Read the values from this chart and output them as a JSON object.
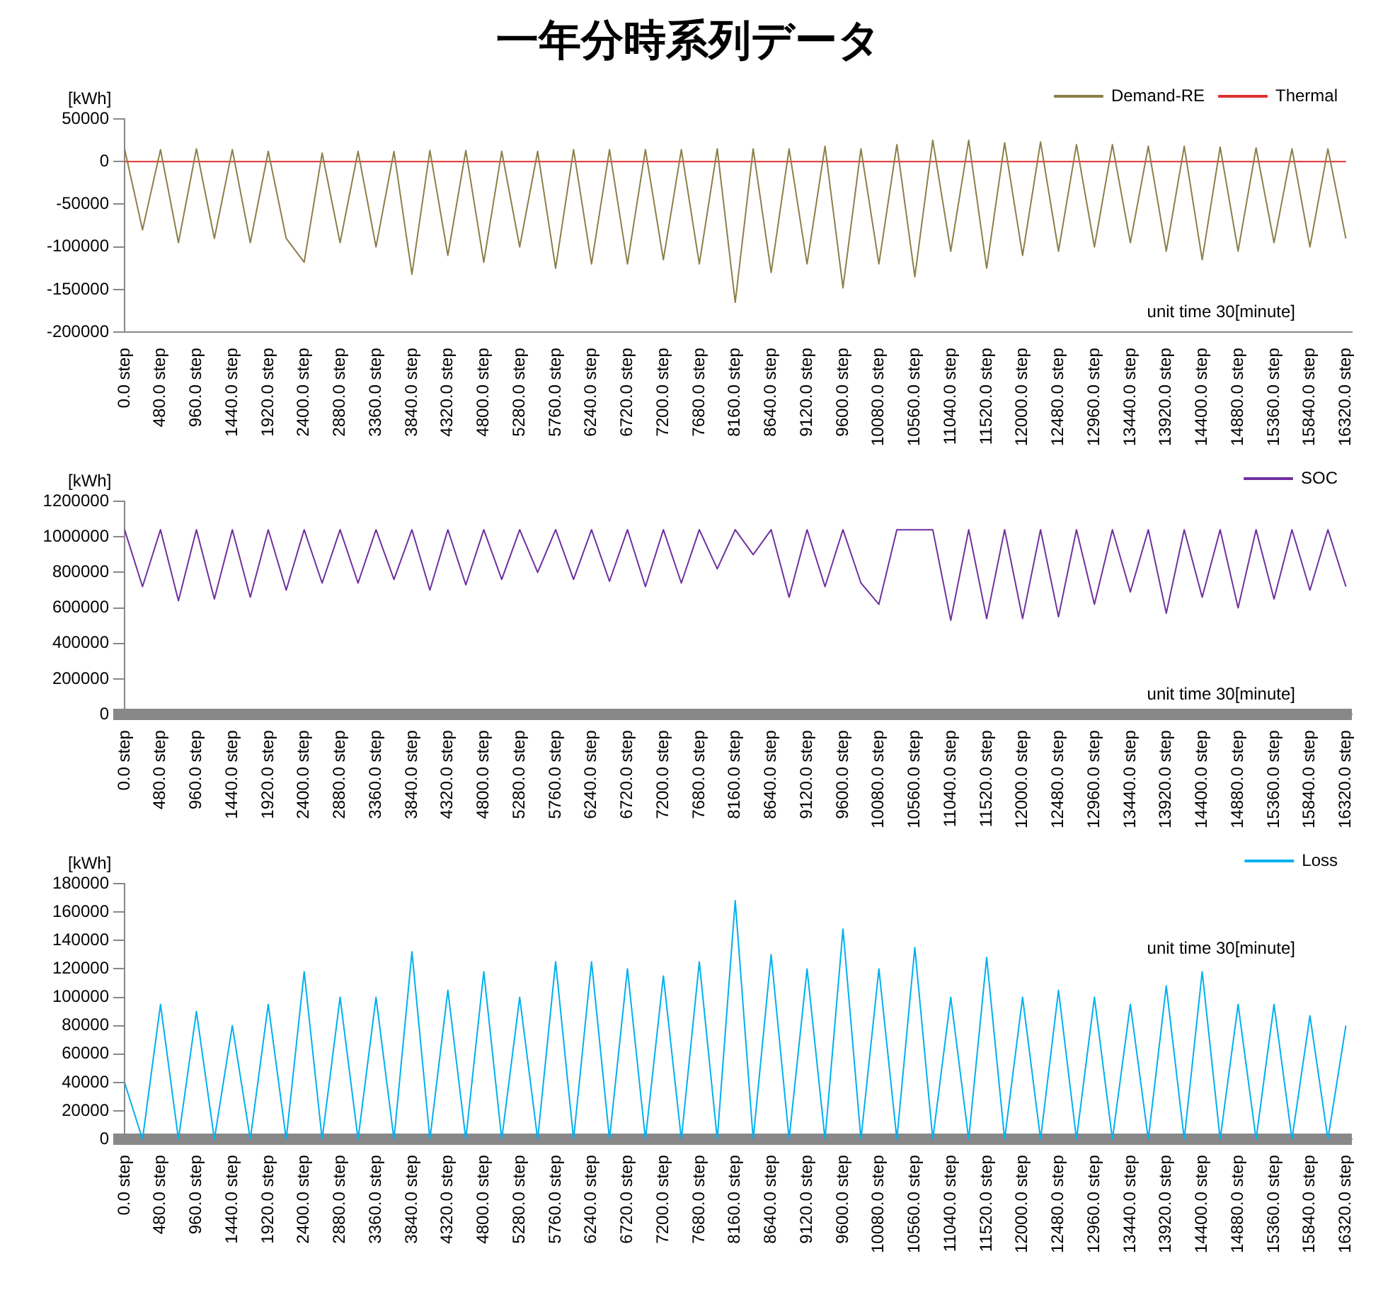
{
  "chart_data": [
    {
      "type": "line",
      "title": "一年分時系列データ",
      "ylabel": "[kWh]",
      "annotations": [
        "unit time 30[minute]"
      ],
      "legend": "top right",
      "grid": false,
      "marker": "none",
      "x": [
        0,
        240,
        480,
        720,
        960,
        1200,
        1440,
        1680,
        1920,
        2160,
        2400,
        2640,
        2880,
        3120,
        3360,
        3600,
        3840,
        4080,
        4320,
        4560,
        4800,
        5040,
        5280,
        5520,
        5760,
        6000,
        6240,
        6480,
        6720,
        6960,
        7200,
        7440,
        7680,
        7920,
        8160,
        8400,
        8640,
        8880,
        9120,
        9360,
        9600,
        9840,
        10080,
        10320,
        10560,
        10800,
        11040,
        11280,
        11520,
        11760,
        12000,
        12240,
        12480,
        12720,
        12960,
        13200,
        13440,
        13680,
        13920,
        14160,
        14400,
        14640,
        14880,
        15120,
        15360,
        15600,
        15840,
        16080,
        16320
      ],
      "series": [
        {
          "name": "Demand-RE",
          "color": "#8c7f4a",
          "values": [
            15000,
            -80000,
            14000,
            -95000,
            15000,
            -90000,
            14000,
            -95000,
            12000,
            -90000,
            -118000,
            10000,
            -95000,
            12000,
            -100000,
            12000,
            -132000,
            13000,
            -110000,
            13000,
            -118000,
            12000,
            -100000,
            12000,
            -125000,
            14000,
            -120000,
            14000,
            -120000,
            14000,
            -115000,
            14000,
            -120000,
            15000,
            -165000,
            15000,
            -130000,
            15000,
            -120000,
            18000,
            -148000,
            15000,
            -120000,
            20000,
            -135000,
            25000,
            -105000,
            25000,
            -125000,
            22000,
            -110000,
            23000,
            -105000,
            20000,
            -100000,
            20000,
            -95000,
            18000,
            -105000,
            18000,
            -115000,
            17000,
            -105000,
            16000,
            -95000,
            15000,
            -100000,
            15000,
            -90000
          ]
        },
        {
          "name": "Thermal",
          "color": "#e03030",
          "x": [
            0,
            16320
          ],
          "values": [
            0,
            0
          ]
        }
      ],
      "xlim": [
        0,
        16400
      ],
      "ylim": [
        -200000,
        50000
      ],
      "yticks": [
        -200000,
        -150000,
        -100000,
        -50000,
        0,
        50000
      ],
      "xticks": [
        {
          "value": 0,
          "label": "0.0 step"
        },
        {
          "value": 480,
          "label": "480.0 step"
        },
        {
          "value": 960,
          "label": "960.0 step"
        },
        {
          "value": 1440,
          "label": "1440.0 step"
        },
        {
          "value": 1920,
          "label": "1920.0 step"
        },
        {
          "value": 2400,
          "label": "2400.0 step"
        },
        {
          "value": 2880,
          "label": "2880.0 step"
        },
        {
          "value": 3360,
          "label": "3360.0 step"
        },
        {
          "value": 3840,
          "label": "3840.0 step"
        },
        {
          "value": 4320,
          "label": "4320.0 step"
        },
        {
          "value": 4800,
          "label": "4800.0 step"
        },
        {
          "value": 5280,
          "label": "5280.0 step"
        },
        {
          "value": 5760,
          "label": "5760.0 step"
        },
        {
          "value": 6240,
          "label": "6240.0 step"
        },
        {
          "value": 6720,
          "label": "6720.0 step"
        },
        {
          "value": 7200,
          "label": "7200.0 step"
        },
        {
          "value": 7680,
          "label": "7680.0 step"
        },
        {
          "value": 8160,
          "label": "8160.0 step"
        },
        {
          "value": 8640,
          "label": "8640.0 step"
        },
        {
          "value": 9120,
          "label": "9120.0 step"
        },
        {
          "value": 9600,
          "label": "9600.0 step"
        },
        {
          "value": 10080,
          "label": "10080.0 step"
        },
        {
          "value": 10560,
          "label": "10560.0 step"
        },
        {
          "value": 11040,
          "label": "11040.0 step"
        },
        {
          "value": 11520,
          "label": "11520.0 step"
        },
        {
          "value": 12000,
          "label": "12000.0 step"
        },
        {
          "value": 12480,
          "label": "12480.0 step"
        },
        {
          "value": 12960,
          "label": "12960.0 step"
        },
        {
          "value": 13440,
          "label": "13440.0 step"
        },
        {
          "value": 13920,
          "label": "13920.0 step"
        },
        {
          "value": 14400,
          "label": "14400.0 step"
        },
        {
          "value": 14880,
          "label": "14880.0 step"
        },
        {
          "value": 15360,
          "label": "15360.0 step"
        },
        {
          "value": 15840,
          "label": "15840.0 step"
        },
        {
          "value": 16320,
          "label": "16320.0 step"
        }
      ]
    },
    {
      "type": "line",
      "ylabel": "[kWh]",
      "annotations": [
        "unit time 30[minute]"
      ],
      "legend": "top right",
      "grid": false,
      "marker": "none",
      "x": [
        0,
        240,
        480,
        720,
        960,
        1200,
        1440,
        1680,
        1920,
        2160,
        2400,
        2640,
        2880,
        3120,
        3360,
        3600,
        3840,
        4080,
        4320,
        4560,
        4800,
        5040,
        5280,
        5520,
        5760,
        6000,
        6240,
        6480,
        6720,
        6960,
        7200,
        7440,
        7680,
        7920,
        8160,
        8400,
        8640,
        8880,
        9120,
        9360,
        9600,
        9840,
        10080,
        10320,
        10560,
        10800,
        11040,
        11280,
        11520,
        11760,
        12000,
        12240,
        12480,
        12720,
        12960,
        13200,
        13440,
        13680,
        13920,
        14160,
        14400,
        14640,
        14880,
        15120,
        15360,
        15600,
        15840,
        16080,
        16320
      ],
      "series": [
        {
          "name": "SOC",
          "color": "#7030a0",
          "values": [
            1040000,
            720000,
            1040000,
            640000,
            1040000,
            650000,
            1040000,
            660000,
            1040000,
            700000,
            1040000,
            740000,
            1040000,
            740000,
            1040000,
            760000,
            1040000,
            700000,
            1040000,
            730000,
            1040000,
            760000,
            1040000,
            800000,
            1040000,
            760000,
            1040000,
            750000,
            1040000,
            720000,
            1040000,
            740000,
            1040000,
            820000,
            1040000,
            900000,
            1040000,
            660000,
            1040000,
            720000,
            1040000,
            740000,
            620000,
            1040000,
            1040000,
            1040000,
            530000,
            1040000,
            540000,
            1040000,
            540000,
            1040000,
            550000,
            1040000,
            620000,
            1040000,
            690000,
            1040000,
            570000,
            1040000,
            660000,
            1040000,
            600000,
            1040000,
            650000,
            1040000,
            700000,
            1040000,
            720000
          ]
        }
      ],
      "xlim": [
        0,
        16400
      ],
      "ylim": [
        0,
        1200000
      ],
      "yticks": [
        0,
        200000,
        400000,
        600000,
        800000,
        1000000,
        1200000
      ],
      "xticks": [
        {
          "value": 0,
          "label": "0.0 step"
        },
        {
          "value": 480,
          "label": "480.0 step"
        },
        {
          "value": 960,
          "label": "960.0 step"
        },
        {
          "value": 1440,
          "label": "1440.0 step"
        },
        {
          "value": 1920,
          "label": "1920.0 step"
        },
        {
          "value": 2400,
          "label": "2400.0 step"
        },
        {
          "value": 2880,
          "label": "2880.0 step"
        },
        {
          "value": 3360,
          "label": "3360.0 step"
        },
        {
          "value": 3840,
          "label": "3840.0 step"
        },
        {
          "value": 4320,
          "label": "4320.0 step"
        },
        {
          "value": 4800,
          "label": "4800.0 step"
        },
        {
          "value": 5280,
          "label": "5280.0 step"
        },
        {
          "value": 5760,
          "label": "5760.0 step"
        },
        {
          "value": 6240,
          "label": "6240.0 step"
        },
        {
          "value": 6720,
          "label": "6720.0 step"
        },
        {
          "value": 7200,
          "label": "7200.0 step"
        },
        {
          "value": 7680,
          "label": "7680.0 step"
        },
        {
          "value": 8160,
          "label": "8160.0 step"
        },
        {
          "value": 8640,
          "label": "8640.0 step"
        },
        {
          "value": 9120,
          "label": "9120.0 step"
        },
        {
          "value": 9600,
          "label": "9600.0 step"
        },
        {
          "value": 10080,
          "label": "10080.0 step"
        },
        {
          "value": 10560,
          "label": "10560.0 step"
        },
        {
          "value": 11040,
          "label": "11040.0 step"
        },
        {
          "value": 11520,
          "label": "11520.0 step"
        },
        {
          "value": 12000,
          "label": "12000.0 step"
        },
        {
          "value": 12480,
          "label": "12480.0 step"
        },
        {
          "value": 12960,
          "label": "12960.0 step"
        },
        {
          "value": 13440,
          "label": "13440.0 step"
        },
        {
          "value": 13920,
          "label": "13920.0 step"
        },
        {
          "value": 14400,
          "label": "14400.0 step"
        },
        {
          "value": 14880,
          "label": "14880.0 step"
        },
        {
          "value": 15360,
          "label": "15360.0 step"
        },
        {
          "value": 15840,
          "label": "15840.0 step"
        },
        {
          "value": 16320,
          "label": "16320.0 step"
        }
      ]
    },
    {
      "type": "line",
      "ylabel": "[kWh]",
      "annotations": [
        "unit time 30[minute]"
      ],
      "legend": "top right",
      "grid": false,
      "marker": "none",
      "x": [
        0,
        240,
        480,
        720,
        960,
        1200,
        1440,
        1680,
        1920,
        2160,
        2400,
        2640,
        2880,
        3120,
        3360,
        3600,
        3840,
        4080,
        4320,
        4560,
        4800,
        5040,
        5280,
        5520,
        5760,
        6000,
        6240,
        6480,
        6720,
        6960,
        7200,
        7440,
        7680,
        7920,
        8160,
        8400,
        8640,
        8880,
        9120,
        9360,
        9600,
        9840,
        10080,
        10320,
        10560,
        10800,
        11040,
        11280,
        11520,
        11760,
        12000,
        12240,
        12480,
        12720,
        12960,
        13200,
        13440,
        13680,
        13920,
        14160,
        14400,
        14640,
        14880,
        15120,
        15360,
        15600,
        15840,
        16080,
        16320
      ],
      "series": [
        {
          "name": "Loss",
          "color": "#00b0f0",
          "values": [
            40000,
            0,
            95000,
            0,
            90000,
            0,
            80000,
            0,
            95000,
            0,
            118000,
            0,
            100000,
            0,
            100000,
            0,
            132000,
            0,
            105000,
            0,
            118000,
            0,
            100000,
            0,
            125000,
            0,
            125000,
            0,
            120000,
            0,
            115000,
            0,
            125000,
            0,
            168000,
            0,
            130000,
            0,
            120000,
            0,
            148000,
            0,
            120000,
            0,
            135000,
            0,
            100000,
            0,
            128000,
            0,
            100000,
            0,
            105000,
            0,
            100000,
            0,
            95000,
            0,
            108000,
            0,
            118000,
            0,
            95000,
            0,
            95000,
            0,
            87000,
            0,
            80000
          ]
        }
      ],
      "xlim": [
        0,
        16400
      ],
      "ylim": [
        0,
        180000
      ],
      "yticks": [
        0,
        20000,
        40000,
        60000,
        80000,
        100000,
        120000,
        140000,
        160000,
        180000
      ],
      "xticks": [
        {
          "value": 0,
          "label": "0.0 step"
        },
        {
          "value": 480,
          "label": "480.0 step"
        },
        {
          "value": 960,
          "label": "960.0 step"
        },
        {
          "value": 1440,
          "label": "1440.0 step"
        },
        {
          "value": 1920,
          "label": "1920.0 step"
        },
        {
          "value": 2400,
          "label": "2400.0 step"
        },
        {
          "value": 2880,
          "label": "2880.0 step"
        },
        {
          "value": 3360,
          "label": "3360.0 step"
        },
        {
          "value": 3840,
          "label": "3840.0 step"
        },
        {
          "value": 4320,
          "label": "4320.0 step"
        },
        {
          "value": 4800,
          "label": "4800.0 step"
        },
        {
          "value": 5280,
          "label": "5280.0 step"
        },
        {
          "value": 5760,
          "label": "5760.0 step"
        },
        {
          "value": 6240,
          "label": "6240.0 step"
        },
        {
          "value": 6720,
          "label": "6720.0 step"
        },
        {
          "value": 7200,
          "label": "7200.0 step"
        },
        {
          "value": 7680,
          "label": "7680.0 step"
        },
        {
          "value": 8160,
          "label": "8160.0 step"
        },
        {
          "value": 8640,
          "label": "8640.0 step"
        },
        {
          "value": 9120,
          "label": "9120.0 step"
        },
        {
          "value": 9600,
          "label": "9600.0 step"
        },
        {
          "value": 10080,
          "label": "10080.0 step"
        },
        {
          "value": 10560,
          "label": "10560.0 step"
        },
        {
          "value": 11040,
          "label": "11040.0 step"
        },
        {
          "value": 11520,
          "label": "11520.0 step"
        },
        {
          "value": 12000,
          "label": "12000.0 step"
        },
        {
          "value": 12480,
          "label": "12480.0 step"
        },
        {
          "value": 12960,
          "label": "12960.0 step"
        },
        {
          "value": 13440,
          "label": "13440.0 step"
        },
        {
          "value": 13920,
          "label": "13920.0 step"
        },
        {
          "value": 14400,
          "label": "14400.0 step"
        },
        {
          "value": 14880,
          "label": "14880.0 step"
        },
        {
          "value": 15360,
          "label": "15360.0 step"
        },
        {
          "value": 15840,
          "label": "15840.0 step"
        },
        {
          "value": 16320,
          "label": "16320.0 step"
        }
      ]
    }
  ]
}
